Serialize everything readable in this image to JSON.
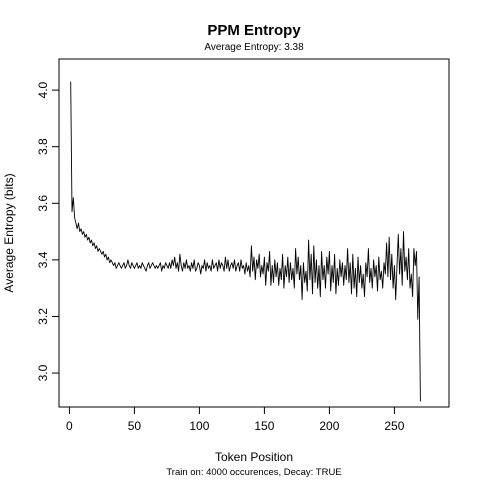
{
  "chart_data": {
    "type": "line",
    "title": "PPM Entropy",
    "subtitle": "Average Entropy: 3.38",
    "xlabel": "Token Position",
    "ylabel": "Average Entropy (bits)",
    "footnote": "Train on: 4000 occurences, Decay: TRUE",
    "xlim": [
      -8,
      292
    ],
    "ylim": [
      2.88,
      4.11
    ],
    "x_ticks": [
      0,
      50,
      100,
      150,
      200,
      250
    ],
    "y_ticks": [
      3.0,
      3.2,
      3.4,
      3.6,
      3.8,
      4.0
    ],
    "x_tick_labels": [
      "0",
      "50",
      "100",
      "150",
      "200",
      "250"
    ],
    "y_tick_labels": [
      "3.0",
      "3.2",
      "3.4",
      "3.6",
      "3.8",
      "4.0"
    ],
    "grid": false,
    "line_color": "#000000",
    "series": [
      {
        "x_start": 1,
        "x_step": 1,
        "values": [
          4.03,
          3.57,
          3.62,
          3.55,
          3.53,
          3.51,
          3.53,
          3.5,
          3.51,
          3.49,
          3.5,
          3.48,
          3.49,
          3.47,
          3.48,
          3.46,
          3.47,
          3.45,
          3.46,
          3.44,
          3.45,
          3.43,
          3.44,
          3.43,
          3.42,
          3.43,
          3.41,
          3.42,
          3.4,
          3.41,
          3.39,
          3.4,
          3.39,
          3.38,
          3.39,
          3.37,
          3.38,
          3.39,
          3.38,
          3.37,
          3.38,
          3.39,
          3.37,
          3.38,
          3.4,
          3.38,
          3.37,
          3.39,
          3.38,
          3.37,
          3.38,
          3.39,
          3.37,
          3.38,
          3.37,
          3.39,
          3.38,
          3.37,
          3.36,
          3.38,
          3.39,
          3.37,
          3.38,
          3.39,
          3.38,
          3.37,
          3.38,
          3.37,
          3.38,
          3.39,
          3.36,
          3.38,
          3.37,
          3.39,
          3.38,
          3.37,
          3.39,
          3.37,
          3.4,
          3.38,
          3.41,
          3.37,
          3.39,
          3.36,
          3.42,
          3.38,
          3.36,
          3.39,
          3.37,
          3.4,
          3.37,
          3.38,
          3.36,
          3.39,
          3.37,
          3.4,
          3.36,
          3.37,
          3.39,
          3.38,
          3.35,
          3.38,
          3.37,
          3.4,
          3.36,
          3.39,
          3.37,
          3.38,
          3.36,
          3.4,
          3.37,
          3.38,
          3.39,
          3.36,
          3.4,
          3.37,
          3.39,
          3.38,
          3.36,
          3.41,
          3.37,
          3.4,
          3.36,
          3.38,
          3.39,
          3.37,
          3.4,
          3.36,
          3.38,
          3.39,
          3.36,
          3.4,
          3.37,
          3.38,
          3.35,
          3.39,
          3.36,
          3.38,
          3.34,
          3.45,
          3.36,
          3.41,
          3.33,
          3.4,
          3.37,
          3.42,
          3.34,
          3.38,
          3.35,
          3.41,
          3.31,
          3.39,
          3.36,
          3.43,
          3.31,
          3.38,
          3.32,
          3.4,
          3.34,
          3.39,
          3.31,
          3.37,
          3.33,
          3.42,
          3.3,
          3.38,
          3.34,
          3.41,
          3.32,
          3.39,
          3.33,
          3.37,
          3.3,
          3.44,
          3.35,
          3.41,
          3.33,
          3.38,
          3.26,
          3.39,
          3.32,
          3.36,
          3.29,
          3.47,
          3.33,
          3.42,
          3.28,
          3.45,
          3.32,
          3.4,
          3.3,
          3.38,
          3.27,
          3.43,
          3.33,
          3.38,
          3.3,
          3.41,
          3.35,
          3.43,
          3.29,
          3.38,
          3.32,
          3.42,
          3.28,
          3.37,
          3.31,
          3.4,
          3.34,
          3.39,
          3.31,
          3.38,
          3.33,
          3.44,
          3.32,
          3.39,
          3.28,
          3.42,
          3.3,
          3.37,
          3.27,
          3.41,
          3.32,
          3.38,
          3.3,
          3.35,
          3.27,
          3.39,
          3.34,
          3.44,
          3.32,
          3.37,
          3.3,
          3.4,
          3.34,
          3.38,
          3.29,
          3.41,
          3.33,
          3.36,
          3.3,
          3.39,
          3.35,
          3.46,
          3.34,
          3.48,
          3.33,
          3.42,
          3.3,
          3.38,
          3.26,
          3.38,
          3.49,
          3.35,
          3.44,
          3.31,
          3.5,
          3.36,
          3.41,
          3.33,
          3.44,
          3.3,
          3.35,
          3.27,
          3.44,
          3.38,
          3.43,
          3.19,
          3.34,
          2.9
        ]
      }
    ]
  }
}
